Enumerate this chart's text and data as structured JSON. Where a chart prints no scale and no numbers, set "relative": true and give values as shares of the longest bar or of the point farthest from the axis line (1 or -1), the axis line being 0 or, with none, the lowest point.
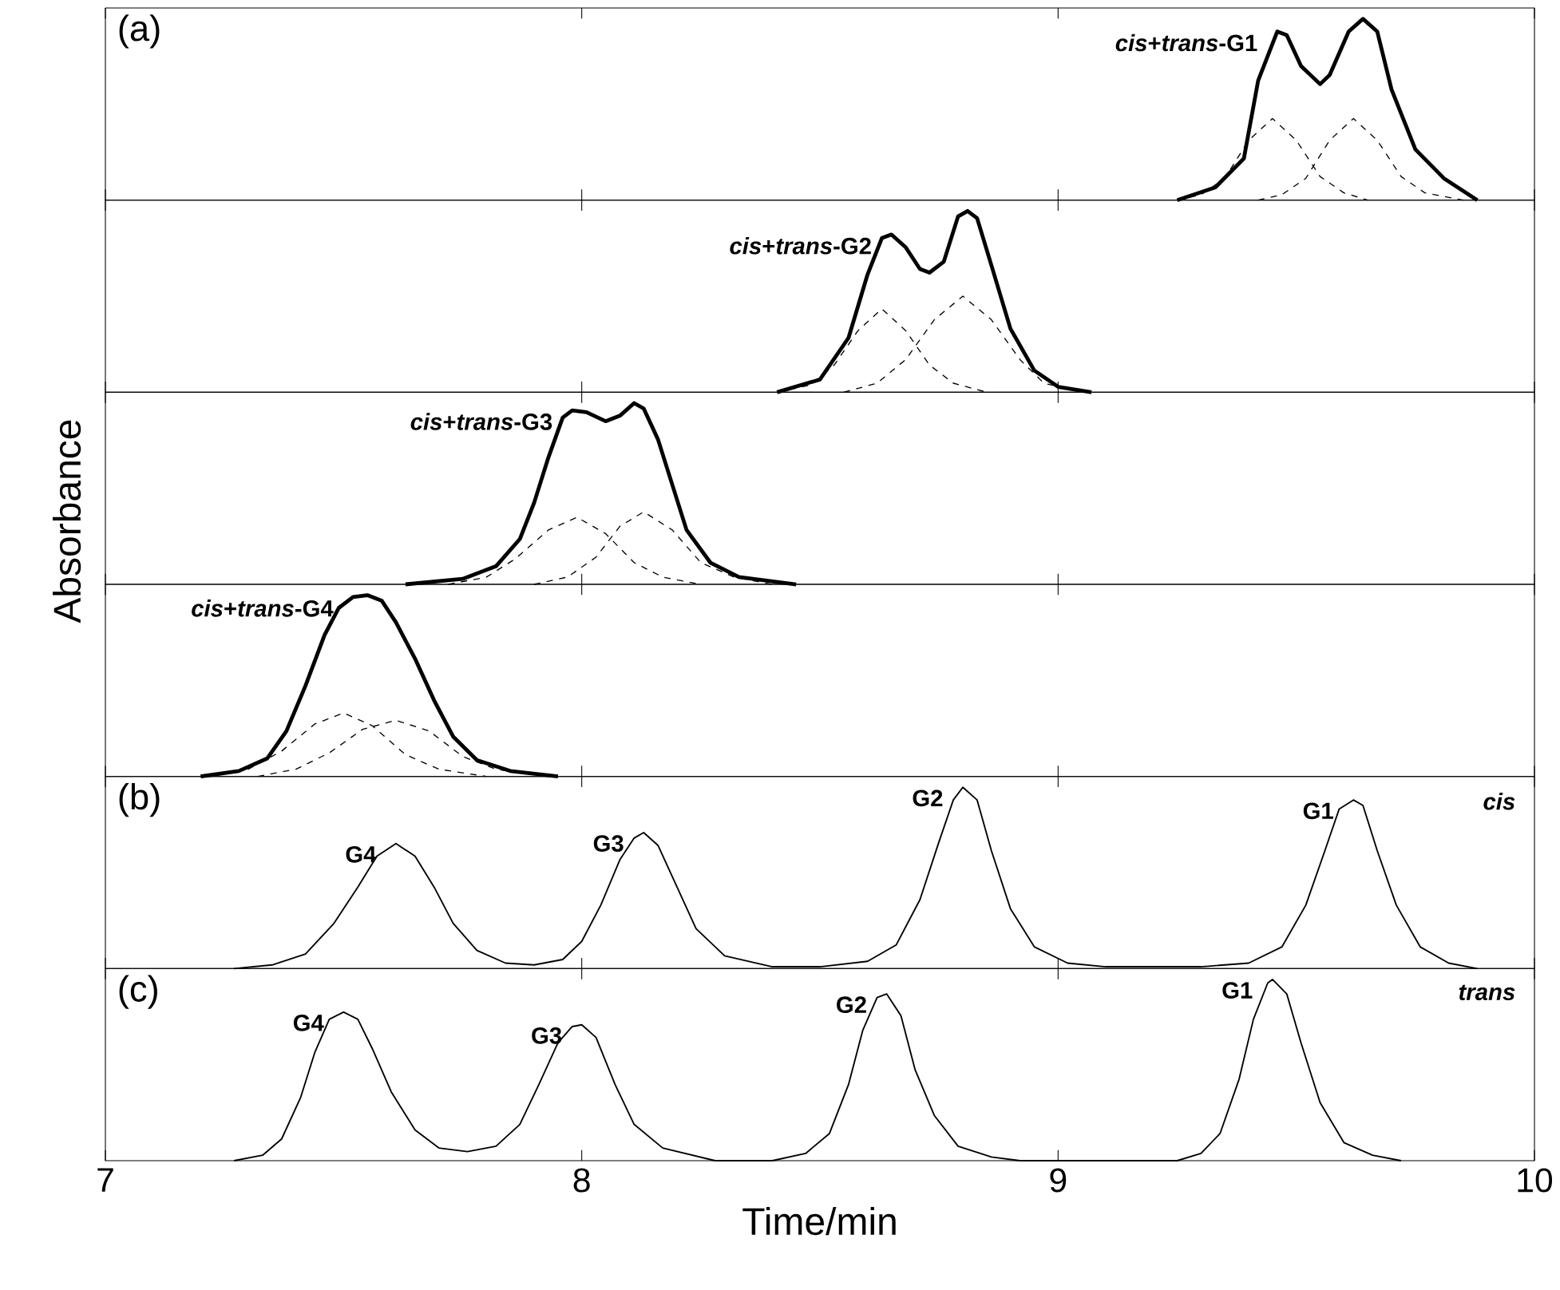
{
  "chart_data": [
    {
      "type": "line",
      "relative": true,
      "xlim": [
        7,
        10
      ],
      "xticks": [
        7,
        8,
        9,
        10
      ],
      "tick_labels": false,
      "annotations": [
        "(a)",
        {
          "text": "*cis*+*trans*-G1",
          "x": 9.46,
          "y": 0.93
        }
      ],
      "series": [
        {
          "color": "#000000",
          "line_style": "solid",
          "x": [
            9.25,
            9.33,
            9.39,
            9.42,
            9.46,
            9.48,
            9.51,
            9.55,
            9.57,
            9.61,
            9.64,
            9.67,
            9.7,
            9.75,
            9.81,
            9.88
          ],
          "values": [
            0,
            0.07,
            0.23,
            0.66,
            0.93,
            0.91,
            0.74,
            0.64,
            0.69,
            0.93,
            1.0,
            0.93,
            0.61,
            0.28,
            0.12,
            0
          ]
        },
        {
          "color": "#000000",
          "line_style": "dashed",
          "x": [
            9.25,
            9.3,
            9.35,
            9.4,
            9.45,
            9.5,
            9.55,
            9.6,
            9.65
          ],
          "values": [
            0,
            0.03,
            0.12,
            0.33,
            0.45,
            0.33,
            0.13,
            0.04,
            0
          ]
        },
        {
          "color": "#000000",
          "line_style": "dashed",
          "x": [
            9.42,
            9.47,
            9.52,
            9.57,
            9.62,
            9.67,
            9.72,
            9.77,
            9.85
          ],
          "values": [
            0,
            0.03,
            0.12,
            0.33,
            0.45,
            0.33,
            0.13,
            0.04,
            0
          ]
        }
      ]
    },
    {
      "type": "line",
      "relative": true,
      "xlim": [
        7,
        10
      ],
      "xticks": [
        7,
        8,
        9,
        10
      ],
      "tick_labels": false,
      "annotations": [
        {
          "text": "*cis*+*trans*-G2",
          "x": 8.65,
          "y": 0.87
        }
      ],
      "series": [
        {
          "color": "#000000",
          "line_style": "solid",
          "x": [
            8.41,
            8.5,
            8.56,
            8.6,
            8.63,
            8.65,
            8.68,
            8.71,
            8.73,
            8.76,
            8.79,
            8.81,
            8.83,
            8.86,
            8.9,
            8.95,
            9.0,
            9.07
          ],
          "values": [
            0,
            0.07,
            0.3,
            0.65,
            0.85,
            0.87,
            0.8,
            0.68,
            0.66,
            0.72,
            0.97,
            1.0,
            0.96,
            0.7,
            0.35,
            0.12,
            0.03,
            0
          ]
        },
        {
          "color": "#000000",
          "line_style": "dashed",
          "x": [
            8.41,
            8.48,
            8.53,
            8.58,
            8.63,
            8.68,
            8.73,
            8.78,
            8.85
          ],
          "values": [
            0,
            0.04,
            0.15,
            0.34,
            0.46,
            0.34,
            0.15,
            0.05,
            0
          ]
        },
        {
          "color": "#000000",
          "line_style": "dashed",
          "x": [
            8.55,
            8.62,
            8.68,
            8.74,
            8.8,
            8.86,
            8.92,
            8.97,
            9.05
          ],
          "values": [
            0,
            0.05,
            0.18,
            0.4,
            0.53,
            0.4,
            0.18,
            0.05,
            0
          ]
        }
      ]
    },
    {
      "type": "line",
      "relative": true,
      "xlim": [
        7,
        10
      ],
      "xticks": [
        7,
        8,
        9,
        10
      ],
      "tick_labels": false,
      "ylabel": "Absorbance",
      "annotations": [
        {
          "text": "*cis*+*trans*-G3",
          "x": 7.98,
          "y": 0.96
        }
      ],
      "series": [
        {
          "color": "#000000",
          "line_style": "solid",
          "x": [
            7.63,
            7.75,
            7.82,
            7.87,
            7.9,
            7.93,
            7.96,
            7.98,
            8.01,
            8.05,
            8.08,
            8.11,
            8.13,
            8.16,
            8.19,
            8.22,
            8.27,
            8.33,
            8.45
          ],
          "values": [
            0,
            0.03,
            0.1,
            0.25,
            0.45,
            0.7,
            0.92,
            0.96,
            0.95,
            0.9,
            0.93,
            1.0,
            0.97,
            0.8,
            0.55,
            0.3,
            0.12,
            0.04,
            0
          ]
        },
        {
          "color": "#000000",
          "line_style": "dashed",
          "x": [
            7.72,
            7.8,
            7.86,
            7.93,
            7.99,
            8.05,
            8.11,
            8.17,
            8.25
          ],
          "values": [
            0,
            0.04,
            0.14,
            0.3,
            0.37,
            0.28,
            0.12,
            0.04,
            0
          ]
        },
        {
          "color": "#000000",
          "line_style": "dashed",
          "x": [
            7.9,
            7.97,
            8.03,
            8.08,
            8.13,
            8.19,
            8.25,
            8.32,
            8.4
          ],
          "values": [
            0,
            0.04,
            0.15,
            0.32,
            0.4,
            0.3,
            0.12,
            0.04,
            0
          ]
        }
      ]
    },
    {
      "type": "line",
      "relative": true,
      "xlim": [
        7,
        10
      ],
      "xticks": [
        7,
        8,
        9,
        10
      ],
      "tick_labels": false,
      "annotations": [
        {
          "text": "*cis*+*trans*-G4",
          "x": 7.52,
          "y": 0.99
        }
      ],
      "series": [
        {
          "color": "#000000",
          "line_style": "solid",
          "x": [
            7.2,
            7.28,
            7.34,
            7.38,
            7.42,
            7.46,
            7.49,
            7.52,
            7.55,
            7.58,
            7.61,
            7.65,
            7.69,
            7.73,
            7.78,
            7.85,
            7.95
          ],
          "values": [
            0,
            0.03,
            0.1,
            0.25,
            0.5,
            0.78,
            0.93,
            0.99,
            1.0,
            0.97,
            0.85,
            0.65,
            0.42,
            0.22,
            0.09,
            0.03,
            0
          ]
        },
        {
          "color": "#000000",
          "line_style": "dashed",
          "x": [
            7.22,
            7.3,
            7.37,
            7.44,
            7.5,
            7.56,
            7.63,
            7.7,
            7.8
          ],
          "values": [
            0,
            0.04,
            0.14,
            0.29,
            0.35,
            0.28,
            0.12,
            0.04,
            0
          ]
        },
        {
          "color": "#000000",
          "line_style": "dashed",
          "x": [
            7.32,
            7.4,
            7.47,
            7.54,
            7.61,
            7.68,
            7.75,
            7.82,
            7.92
          ],
          "values": [
            0,
            0.04,
            0.13,
            0.26,
            0.31,
            0.25,
            0.11,
            0.04,
            0
          ]
        }
      ]
    },
    {
      "type": "line",
      "relative": true,
      "xlim": [
        7,
        10
      ],
      "xticks": [
        7,
        8,
        9,
        10
      ],
      "tick_labels": false,
      "annotations": [
        "(b)",
        "cis",
        {
          "text": "G4",
          "x": 7.61,
          "y": 0.69
        },
        {
          "text": "G3",
          "x": 8.13,
          "y": 0.75
        },
        {
          "text": "G2",
          "x": 8.8,
          "y": 1.0
        },
        {
          "text": "G1",
          "x": 9.62,
          "y": 0.93
        }
      ],
      "series": [
        {
          "color": "#000000",
          "line_style": "solid",
          "x": [
            7.27,
            7.35,
            7.42,
            7.48,
            7.53,
            7.57,
            7.61,
            7.65,
            7.69,
            7.73,
            7.78,
            7.84,
            7.9,
            7.96,
            8.0,
            8.04,
            8.08,
            8.11,
            8.13,
            8.16,
            8.2,
            8.24,
            8.3,
            8.4,
            8.5,
            8.6,
            8.66,
            8.71,
            8.75,
            8.78,
            8.8,
            8.83,
            8.86,
            8.9,
            8.95,
            9.02,
            9.1,
            9.3,
            9.4,
            9.47,
            9.52,
            9.56,
            9.59,
            9.62,
            9.64,
            9.67,
            9.71,
            9.76,
            9.82,
            9.88
          ],
          "values": [
            0,
            0.02,
            0.08,
            0.25,
            0.45,
            0.62,
            0.69,
            0.62,
            0.45,
            0.25,
            0.1,
            0.03,
            0.02,
            0.05,
            0.15,
            0.35,
            0.6,
            0.72,
            0.75,
            0.68,
            0.45,
            0.22,
            0.07,
            0.01,
            0.01,
            0.04,
            0.13,
            0.38,
            0.7,
            0.93,
            1.0,
            0.93,
            0.65,
            0.33,
            0.12,
            0.03,
            0.01,
            0.01,
            0.03,
            0.12,
            0.35,
            0.65,
            0.88,
            0.93,
            0.9,
            0.65,
            0.35,
            0.12,
            0.03,
            0
          ]
        }
      ]
    },
    {
      "type": "line",
      "relative": true,
      "xlim": [
        7,
        10
      ],
      "xticks": [
        7,
        8,
        9,
        10
      ],
      "tick_labels": "x",
      "xlabel": "Time/min",
      "annotations": [
        "(c)",
        "trans",
        {
          "text": "G4",
          "x": 7.5,
          "y": 0.82
        },
        {
          "text": "G3",
          "x": 8.0,
          "y": 0.75
        },
        {
          "text": "G2",
          "x": 8.64,
          "y": 0.92
        },
        {
          "text": "G1",
          "x": 9.45,
          "y": 1.0
        }
      ],
      "series": [
        {
          "color": "#000000",
          "line_style": "solid",
          "x": [
            7.27,
            7.33,
            7.37,
            7.41,
            7.44,
            7.47,
            7.5,
            7.53,
            7.56,
            7.6,
            7.65,
            7.7,
            7.76,
            7.82,
            7.87,
            7.91,
            7.95,
            7.98,
            8.0,
            8.03,
            8.07,
            8.11,
            8.17,
            8.28,
            8.4,
            8.47,
            8.52,
            8.56,
            8.59,
            8.62,
            8.64,
            8.67,
            8.7,
            8.74,
            8.79,
            8.86,
            8.92,
            9.25,
            9.3,
            9.34,
            9.38,
            9.41,
            9.44,
            9.45,
            9.48,
            9.51,
            9.55,
            9.6,
            9.66,
            9.72
          ],
          "values": [
            0,
            0.03,
            0.12,
            0.35,
            0.6,
            0.78,
            0.82,
            0.78,
            0.62,
            0.38,
            0.17,
            0.07,
            0.05,
            0.08,
            0.2,
            0.42,
            0.65,
            0.74,
            0.75,
            0.68,
            0.42,
            0.2,
            0.07,
            0,
            0,
            0.04,
            0.15,
            0.42,
            0.72,
            0.9,
            0.92,
            0.8,
            0.5,
            0.25,
            0.08,
            0.02,
            0,
            0,
            0.04,
            0.15,
            0.45,
            0.78,
            0.98,
            1.0,
            0.92,
            0.65,
            0.32,
            0.1,
            0.03,
            0
          ]
        }
      ]
    }
  ]
}
